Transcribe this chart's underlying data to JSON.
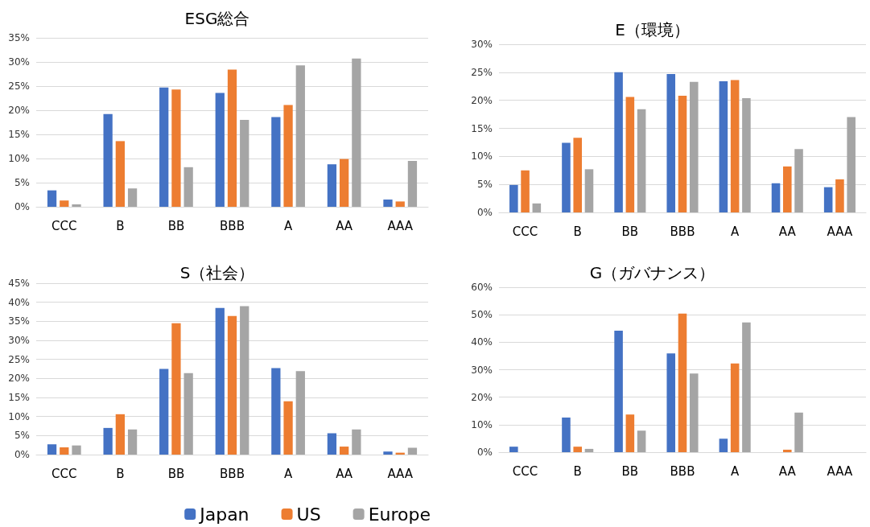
{
  "chart_data": [
    {
      "type": "bar",
      "title": "ESG総合",
      "categories": [
        "CCC",
        "B",
        "BB",
        "BBB",
        "A",
        "AA",
        "AAA"
      ],
      "series": [
        {
          "color": "#4472c4",
          "values": [
            3.4,
            19.2,
            24.7,
            23.6,
            18.6,
            8.8,
            1.5
          ]
        },
        {
          "color": "#ed7d31",
          "values": [
            1.3,
            13.6,
            24.3,
            28.4,
            21.1,
            9.9,
            1.1
          ]
        },
        {
          "color": "#a5a5a5",
          "values": [
            0.5,
            3.8,
            8.2,
            18.0,
            29.3,
            30.7,
            9.5
          ]
        }
      ],
      "ylim": [
        0,
        35
      ],
      "yticks": [
        {
          "value": 0,
          "label": "0%"
        },
        {
          "value": 5,
          "label": "5%"
        },
        {
          "value": 10,
          "label": "10%"
        },
        {
          "value": 15,
          "label": "15%"
        },
        {
          "value": 20,
          "label": "20%"
        },
        {
          "value": 25,
          "label": "25%"
        },
        {
          "value": 30,
          "label": "30%"
        },
        {
          "value": 35,
          "label": "35%"
        }
      ],
      "grid": "y"
    },
    {
      "type": "bar",
      "title": "E（環境）",
      "categories": [
        "CCC",
        "B",
        "BB",
        "BBB",
        "A",
        "AA",
        "AAA"
      ],
      "series": [
        {
          "color": "#4472c4",
          "values": [
            4.9,
            12.4,
            25.0,
            24.7,
            23.4,
            5.2,
            4.5
          ]
        },
        {
          "color": "#ed7d31",
          "values": [
            7.5,
            13.3,
            20.6,
            20.8,
            23.6,
            8.2,
            5.9
          ]
        },
        {
          "color": "#a5a5a5",
          "values": [
            1.6,
            7.7,
            18.4,
            23.3,
            20.4,
            11.3,
            17.0
          ]
        }
      ],
      "ylim": [
        0,
        30
      ],
      "yticks": [
        {
          "value": 0,
          "label": "0%"
        },
        {
          "value": 5,
          "label": "5%"
        },
        {
          "value": 10,
          "label": "10%"
        },
        {
          "value": 15,
          "label": "15%"
        },
        {
          "value": 20,
          "label": "20%"
        },
        {
          "value": 25,
          "label": "25%"
        },
        {
          "value": 30,
          "label": "30%"
        }
      ],
      "grid": "y"
    },
    {
      "type": "bar",
      "title": "S（社会）",
      "categories": [
        "CCC",
        "B",
        "BB",
        "BBB",
        "A",
        "AA",
        "AAA"
      ],
      "series": [
        {
          "name": "Japan",
          "color": "#4472c4",
          "values": [
            2.7,
            7.0,
            22.5,
            38.5,
            22.7,
            5.6,
            0.8
          ]
        },
        {
          "name": "US",
          "color": "#ed7d31",
          "values": [
            1.9,
            10.6,
            34.5,
            36.4,
            14.0,
            2.1,
            0.5
          ]
        },
        {
          "name": "Europe",
          "color": "#a5a5a5",
          "values": [
            2.4,
            6.6,
            21.4,
            39.0,
            21.9,
            6.6,
            1.8
          ]
        }
      ],
      "ylim": [
        0,
        45
      ],
      "yticks": [
        {
          "value": 0,
          "label": "0%"
        },
        {
          "value": 5,
          "label": "5%"
        },
        {
          "value": 10,
          "label": "10%"
        },
        {
          "value": 15,
          "label": "15%"
        },
        {
          "value": 20,
          "label": "20%"
        },
        {
          "value": 25,
          "label": "25%"
        },
        {
          "value": 30,
          "label": "30%"
        },
        {
          "value": 35,
          "label": "35%"
        },
        {
          "value": 40,
          "label": "40%"
        },
        {
          "value": 45,
          "label": "45%"
        }
      ],
      "grid": "y",
      "legend": "bottom"
    },
    {
      "type": "bar",
      "title": "G（ガバナンス）",
      "categories": [
        "CCC",
        "B",
        "BB",
        "BBB",
        "A",
        "AA",
        "AAA"
      ],
      "series": [
        {
          "color": "#4472c4",
          "values": [
            2.0,
            12.6,
            44.2,
            35.9,
            4.9,
            0,
            0
          ]
        },
        {
          "color": "#ed7d31",
          "values": [
            0,
            2.0,
            13.7,
            50.4,
            32.3,
            0.9,
            0
          ]
        },
        {
          "color": "#a5a5a5",
          "values": [
            0,
            1.2,
            7.8,
            28.6,
            47.2,
            14.4,
            0
          ]
        }
      ],
      "ylim": [
        0,
        60
      ],
      "yticks": [
        {
          "value": 0,
          "label": "0%"
        },
        {
          "value": 10,
          "label": "10%"
        },
        {
          "value": 20,
          "label": "20%"
        },
        {
          "value": 30,
          "label": "30%"
        },
        {
          "value": 40,
          "label": "40%"
        },
        {
          "value": 50,
          "label": "50%"
        },
        {
          "value": 60,
          "label": "60%"
        }
      ],
      "grid": "y"
    }
  ]
}
